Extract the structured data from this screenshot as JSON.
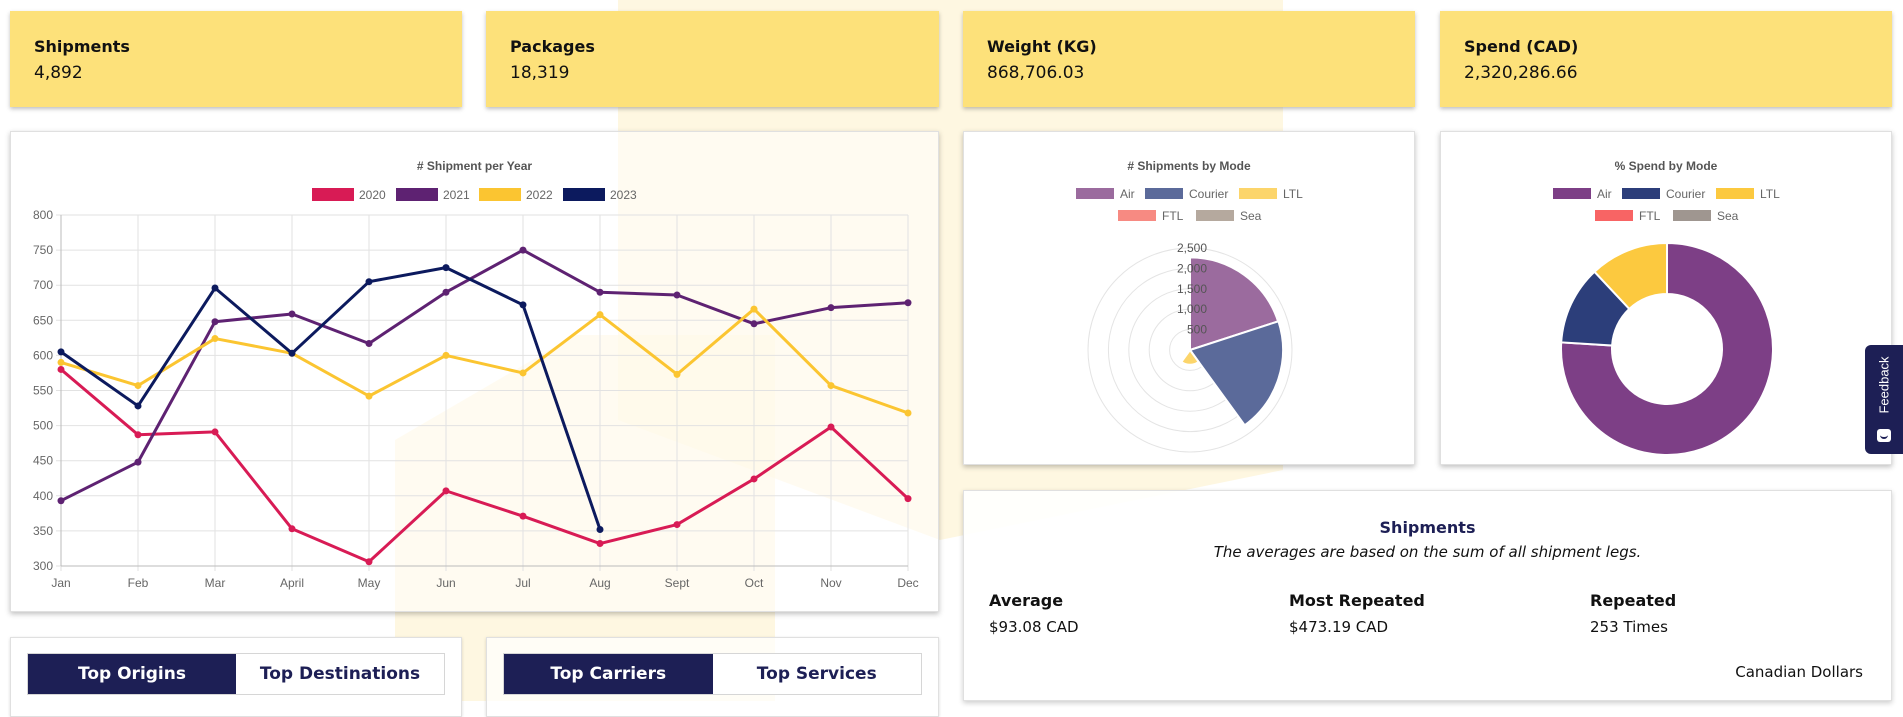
{
  "kpis": [
    {
      "label": "Shipments",
      "value": "4,892"
    },
    {
      "label": "Packages",
      "value": "18,319"
    },
    {
      "label": "Weight (KG)",
      "value": "868,706.03"
    },
    {
      "label": "Spend (CAD)",
      "value": "2,320,286.66"
    }
  ],
  "line_chart": {
    "title": "# Shipment per Year",
    "legend": [
      "2020",
      "2021",
      "2022",
      "2023"
    ]
  },
  "polar_chart": {
    "title": "# Shipments by Mode",
    "legend": [
      "Air",
      "Courier",
      "LTL",
      "FTL",
      "Sea"
    ],
    "ticks": [
      "500",
      "1,000",
      "1,500",
      "2,000",
      "2,500"
    ]
  },
  "donut_chart": {
    "title": "% Spend by Mode",
    "legend": [
      "Air",
      "Courier",
      "LTL",
      "FTL",
      "Sea"
    ]
  },
  "colors": {
    "2020": "#d81b55",
    "2021": "#5e2272",
    "2022": "#fbc531",
    "2023": "#0c1a5e",
    "air": "#9b6b9e",
    "courier": "#5b6a9a",
    "ltl": "#fcd56b",
    "ftl": "#f78a82",
    "sea": "#b5a99e",
    "donut_air": "#7d3f86",
    "donut_courier": "#2c3e7a",
    "donut_ltl": "#fcc93f",
    "donut_ftl": "#f86464",
    "donut_sea": "#9f9690",
    "navy": "#1d1f55",
    "kpi_bg": "#fde17a"
  },
  "chart_data": [
    {
      "type": "line",
      "title": "# Shipment per Year",
      "categories": [
        "Jan",
        "Feb",
        "Mar",
        "April",
        "May",
        "Jun",
        "Jul",
        "Aug",
        "Sept",
        "Oct",
        "Nov",
        "Dec"
      ],
      "ylim": [
        300,
        800
      ],
      "yticks": [
        300,
        350,
        400,
        450,
        500,
        550,
        600,
        650,
        700,
        750,
        800
      ],
      "grid": true,
      "legend_position": "top",
      "series": [
        {
          "name": "2020",
          "values": [
            580,
            487,
            491,
            353,
            306,
            407,
            371,
            332,
            359,
            424,
            498,
            396
          ]
        },
        {
          "name": "2021",
          "values": [
            393,
            448,
            648,
            659,
            617,
            690,
            750,
            690,
            686,
            645,
            668,
            675
          ]
        },
        {
          "name": "2022",
          "values": [
            590,
            557,
            624,
            603,
            542,
            600,
            575,
            658,
            573,
            666,
            557,
            518
          ]
        },
        {
          "name": "2023",
          "values": [
            605,
            528,
            696,
            603,
            705,
            725,
            672,
            352,
            null,
            null,
            null,
            null
          ]
        }
      ]
    },
    {
      "type": "polar",
      "title": "# Shipments by Mode",
      "categories": [
        "Air",
        "Courier",
        "LTL",
        "FTL",
        "Sea"
      ],
      "values": [
        2270,
        2280,
        360,
        0,
        0
      ],
      "rmax": 2500,
      "rticks": [
        500,
        1000,
        1500,
        2000,
        2500
      ],
      "legend_position": "top"
    },
    {
      "type": "pie",
      "title": "% Spend by Mode",
      "categories": [
        "Air",
        "Courier",
        "LTL",
        "FTL",
        "Sea"
      ],
      "values": [
        76,
        12,
        12,
        0,
        0
      ],
      "donut": true,
      "legend_position": "top"
    }
  ],
  "tabs_left": {
    "active": "Top Origins",
    "inactive": "Top Destinations"
  },
  "tabs_right": {
    "active": "Top Carriers",
    "inactive": "Top Services"
  },
  "stats": {
    "heading": "Shipments",
    "subheading": "The averages are based on the sum of all shipment legs.",
    "items": [
      {
        "label": "Average",
        "value": "$93.08 CAD"
      },
      {
        "label": "Most Repeated",
        "value": "$473.19 CAD"
      },
      {
        "label": "Repeated",
        "value": "253 Times"
      }
    ],
    "currency_note": "Canadian Dollars"
  },
  "feedback_label": "Feedback"
}
